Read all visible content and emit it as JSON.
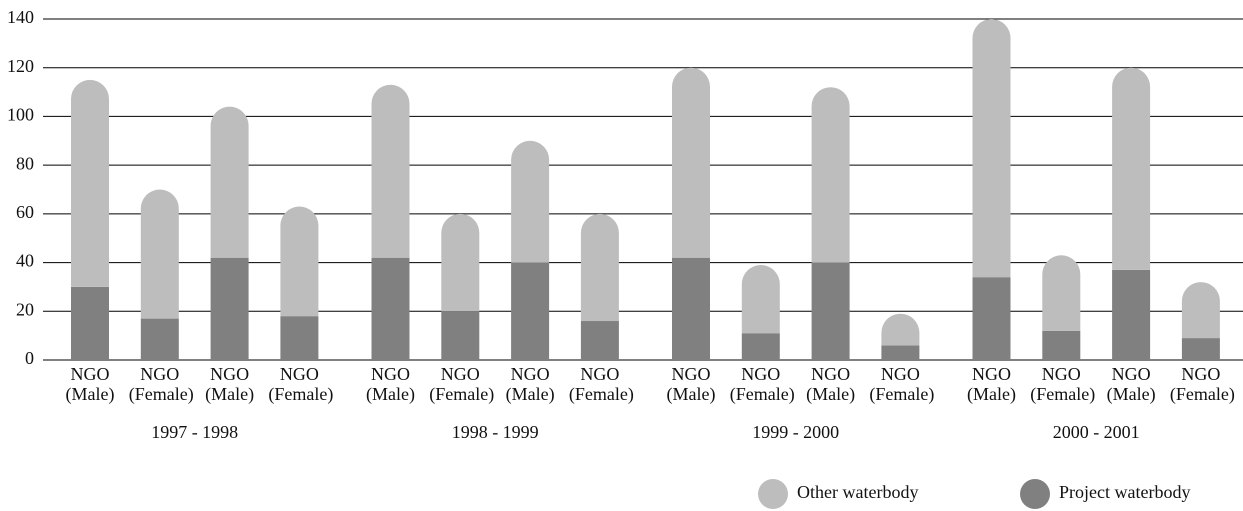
{
  "chart_data": {
    "type": "stacked_bar",
    "categories": [
      "NGO (Male)",
      "NGO (Female)",
      "NGO (Male)",
      "NGO (Female)",
      "NGO (Male)",
      "NGO (Female)",
      "NGO (Male)",
      "NGO (Female)",
      "NGO (Male)",
      "NGO (Female)",
      "NGO (Male)",
      "NGO (Female)",
      "NGO (Male)",
      "NGO (Female)",
      "NGO (Male)",
      "NGO (Female)"
    ],
    "groups": [
      "1997 - 1998",
      "1998 - 1999",
      "1999 - 2000",
      "2000 - 2001"
    ],
    "series": [
      {
        "name": "Project waterbody",
        "color": "#808080",
        "values": [
          30,
          17,
          42,
          18,
          42,
          20,
          40,
          16,
          42,
          11,
          40,
          6,
          34,
          12,
          37,
          9
        ]
      },
      {
        "name": "Other waterbody",
        "color": "#bdbdbd",
        "values": [
          85,
          53,
          62,
          45,
          71,
          40,
          50,
          44,
          78,
          28,
          72,
          13,
          106,
          31,
          83,
          23
        ]
      }
    ],
    "ylim": [
      0,
      140
    ],
    "yticks": [
      0,
      20,
      40,
      60,
      80,
      100,
      120,
      140
    ],
    "grid": true,
    "legend": "bottom-right"
  }
}
